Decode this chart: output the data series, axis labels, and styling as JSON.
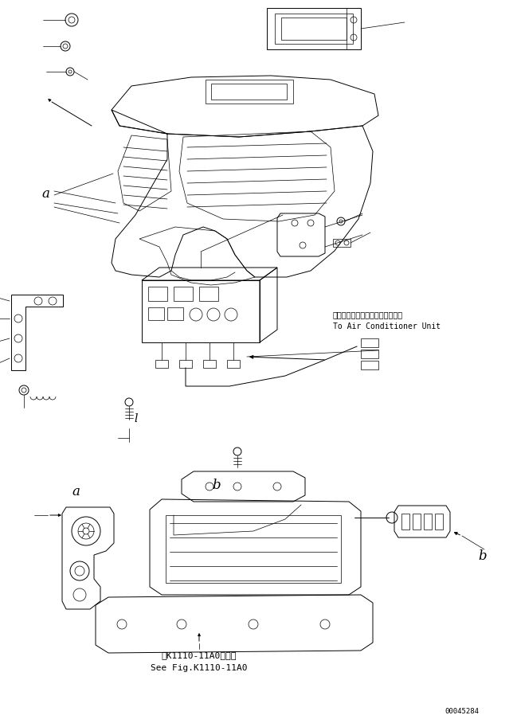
{
  "background_color": "#ffffff",
  "fig_width": 6.44,
  "fig_height": 9.08,
  "dpi": 100,
  "annotation_air_conditioner_jp": "エアーコンディショナユニットへ",
  "annotation_air_conditioner_en": "To Air Conditioner Unit",
  "annotation_see_fig_jp": "第K1110-11A0図参照",
  "annotation_see_fig_en": "See Fig.K1110-11A0",
  "part_id": "00045284",
  "label_a_top": "a",
  "label_a_bottom": "a",
  "label_b_top": "b",
  "label_b_bottom": "b",
  "label_l": "l",
  "text_color": "#000000",
  "line_color": "#000000",
  "font_size_annotation": 7.0,
  "font_size_labels": 10,
  "font_size_partid": 6.5,
  "font_family": "monospace"
}
